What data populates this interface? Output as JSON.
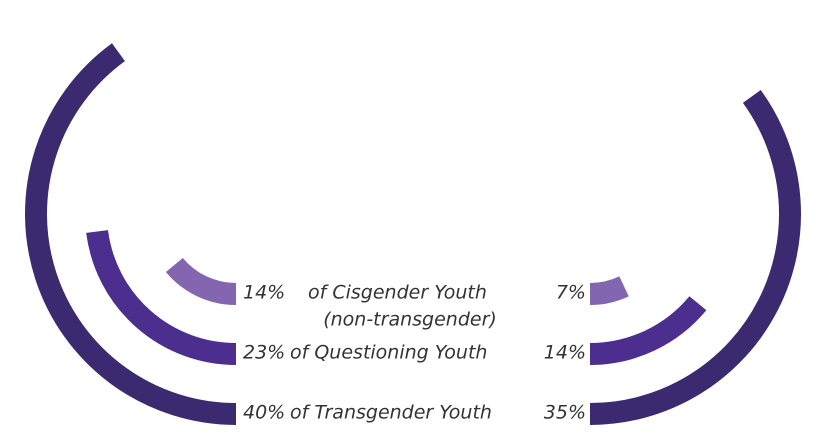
{
  "chart_data": {
    "type": "split_radial_bar",
    "categories": [
      "of Cisgender Youth",
      "of Questioning Youth",
      "of Transgender Youth"
    ],
    "category_notes": [
      "(non-transgender)",
      null,
      null
    ],
    "colors": [
      "#8466b0",
      "#4c2e8e",
      "#3b2a6f"
    ],
    "series": [
      {
        "values": [
          14,
          23,
          40
        ],
        "value_labels": [
          "14%",
          "23%",
          "40%"
        ]
      },
      {
        "values": [
          7,
          14,
          35
        ],
        "value_labels": [
          "7%",
          "14%",
          "35%"
        ]
      }
    ]
  }
}
